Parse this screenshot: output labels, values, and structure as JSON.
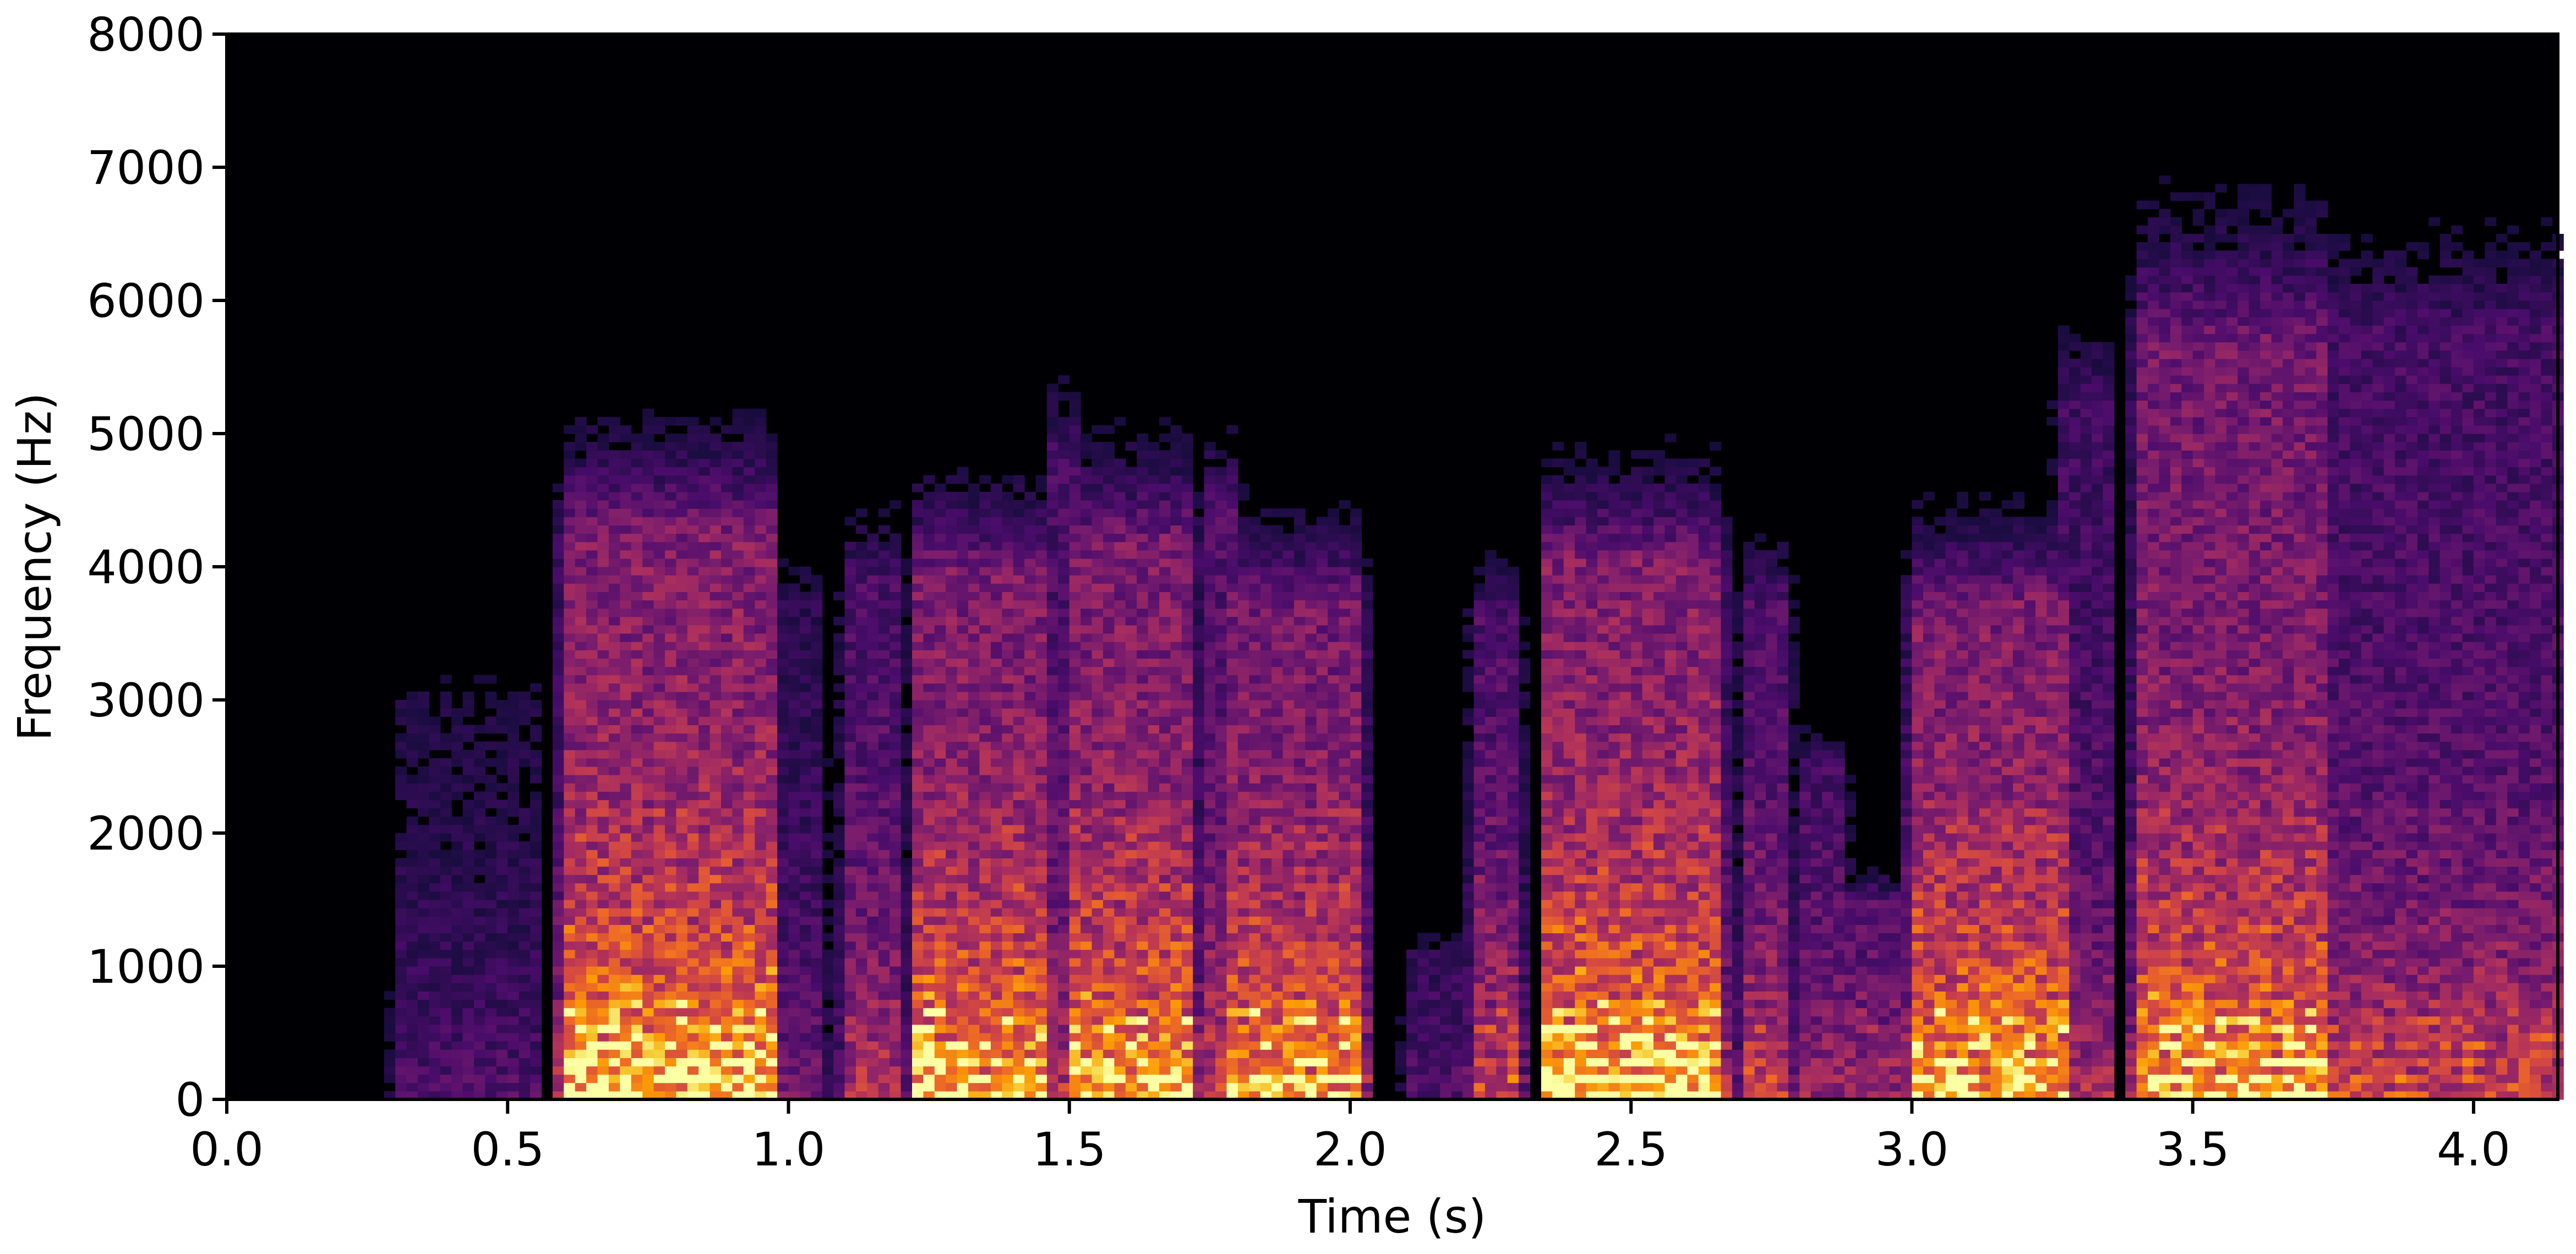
{
  "chart_data": {
    "type": "heatmap",
    "subtype": "spectrogram",
    "title": "",
    "xlabel": "Time (s)",
    "ylabel": "Frequency (Hz)",
    "xlim": [
      0,
      4.15
    ],
    "ylim": [
      0,
      8000
    ],
    "xticks": [
      "0.0",
      "0.5",
      "1.0",
      "1.5",
      "2.0",
      "2.5",
      "3.0",
      "3.5",
      "4.0"
    ],
    "yticks": [
      "0",
      "1000",
      "2000",
      "3000",
      "4000",
      "5000",
      "6000",
      "7000",
      "8000"
    ],
    "colormap": "inferno",
    "background_color": "#000004",
    "grid": false,
    "segments": [
      {
        "t_start": 0.3,
        "t_end": 0.55,
        "f_max": 4000,
        "level": 0.3,
        "voiced": false
      },
      {
        "t_start": 0.6,
        "t_end": 0.97,
        "f_max": 5700,
        "level": 0.95,
        "voiced": true
      },
      {
        "t_start": 0.97,
        "t_end": 1.06,
        "f_max": 5000,
        "level": 0.4,
        "voiced": false
      },
      {
        "t_start": 1.1,
        "t_end": 1.2,
        "f_max": 5200,
        "level": 0.6,
        "voiced": false
      },
      {
        "t_start": 1.23,
        "t_end": 1.45,
        "f_max": 5300,
        "level": 0.9,
        "voiced": true
      },
      {
        "t_start": 1.47,
        "t_end": 1.52,
        "f_max": 6400,
        "level": 0.6,
        "voiced": false
      },
      {
        "t_start": 1.5,
        "t_end": 1.72,
        "f_max": 5600,
        "level": 0.9,
        "voiced": true
      },
      {
        "t_start": 1.74,
        "t_end": 1.8,
        "f_max": 5900,
        "level": 0.65,
        "voiced": false
      },
      {
        "t_start": 1.78,
        "t_end": 2.02,
        "f_max": 5000,
        "level": 0.85,
        "voiced": true
      },
      {
        "t_start": 2.1,
        "t_end": 2.2,
        "f_max": 1500,
        "level": 0.3,
        "voiced": false
      },
      {
        "t_start": 2.22,
        "t_end": 2.3,
        "f_max": 4800,
        "level": 0.6,
        "voiced": true
      },
      {
        "t_start": 2.35,
        "t_end": 2.66,
        "f_max": 5400,
        "level": 0.95,
        "voiced": true
      },
      {
        "t_start": 2.7,
        "t_end": 2.78,
        "f_max": 5000,
        "level": 0.6,
        "voiced": true
      },
      {
        "t_start": 2.8,
        "t_end": 2.88,
        "f_max": 3300,
        "level": 0.5,
        "voiced": false
      },
      {
        "t_start": 2.88,
        "t_end": 2.97,
        "f_max": 2000,
        "level": 0.45,
        "voiced": true
      },
      {
        "t_start": 3.0,
        "t_end": 3.28,
        "f_max": 5000,
        "level": 0.9,
        "voiced": true
      },
      {
        "t_start": 3.26,
        "t_end": 3.35,
        "f_max": 7000,
        "level": 0.55,
        "voiced": false
      },
      {
        "t_start": 3.4,
        "t_end": 3.73,
        "f_max": 7600,
        "level": 0.9,
        "voiced": true
      },
      {
        "t_start": 3.73,
        "t_end": 4.15,
        "f_max": 7700,
        "level": 0.6,
        "voiced": true
      }
    ]
  }
}
